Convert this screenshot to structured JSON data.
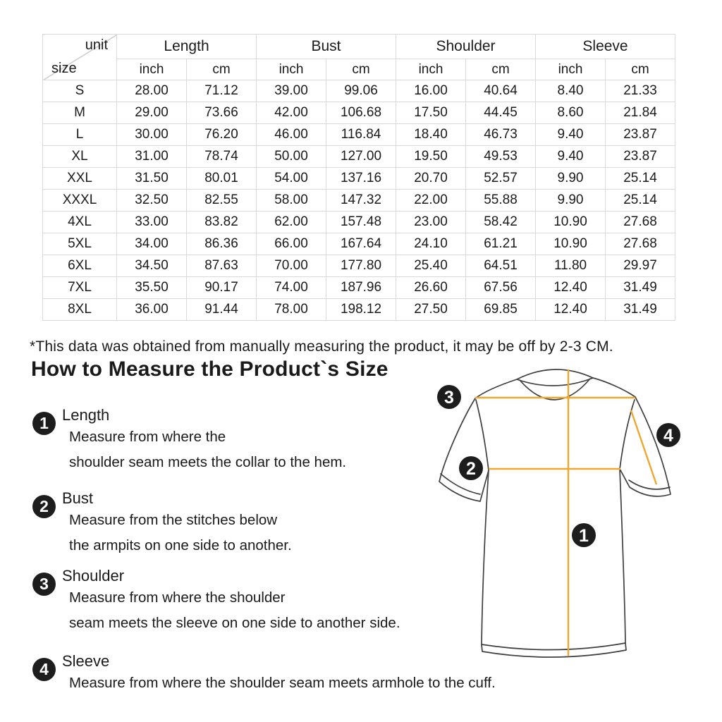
{
  "page": {
    "background": "#ffffff"
  },
  "table": {
    "corner": {
      "unit_label": "unit",
      "size_label": "size"
    },
    "groups": [
      "Length",
      "Bust",
      "Shoulder",
      "Sleeve"
    ],
    "unit_headers": [
      "inch",
      "cm",
      "inch",
      "cm",
      "inch",
      "cm",
      "inch",
      "cm"
    ],
    "rows": [
      {
        "size": "S",
        "values": [
          "28.00",
          "71.12",
          "39.00",
          "99.06",
          "16.00",
          "40.64",
          "8.40",
          "21.33"
        ]
      },
      {
        "size": "M",
        "values": [
          "29.00",
          "73.66",
          "42.00",
          "106.68",
          "17.50",
          "44.45",
          "8.60",
          "21.84"
        ]
      },
      {
        "size": "L",
        "values": [
          "30.00",
          "76.20",
          "46.00",
          "116.84",
          "18.40",
          "46.73",
          "9.40",
          "23.87"
        ]
      },
      {
        "size": "XL",
        "values": [
          "31.00",
          "78.74",
          "50.00",
          "127.00",
          "19.50",
          "49.53",
          "9.40",
          "23.87"
        ]
      },
      {
        "size": "XXL",
        "values": [
          "31.50",
          "80.01",
          "54.00",
          "137.16",
          "20.70",
          "52.57",
          "9.90",
          "25.14"
        ]
      },
      {
        "size": "XXXL",
        "values": [
          "32.50",
          "82.55",
          "58.00",
          "147.32",
          "22.00",
          "55.88",
          "9.90",
          "25.14"
        ]
      },
      {
        "size": "4XL",
        "values": [
          "33.00",
          "83.82",
          "62.00",
          "157.48",
          "23.00",
          "58.42",
          "10.90",
          "27.68"
        ]
      },
      {
        "size": "5XL",
        "values": [
          "34.00",
          "86.36",
          "66.00",
          "167.64",
          "24.10",
          "61.21",
          "10.90",
          "27.68"
        ]
      },
      {
        "size": "6XL",
        "values": [
          "34.50",
          "87.63",
          "70.00",
          "177.80",
          "25.40",
          "64.51",
          "11.80",
          "29.97"
        ]
      },
      {
        "size": "7XL",
        "values": [
          "35.50",
          "90.17",
          "74.00",
          "187.96",
          "26.60",
          "67.56",
          "12.40",
          "31.49"
        ]
      },
      {
        "size": "8XL",
        "values": [
          "36.00",
          "91.44",
          "78.00",
          "198.12",
          "27.50",
          "69.85",
          "12.40",
          "31.49"
        ]
      }
    ]
  },
  "note": "*This data was obtained from manually measuring the product, it may be off by 2-3 CM.",
  "section_title": "How to Measure the Product`s Size",
  "instructions": [
    {
      "num": "1",
      "title": "Length",
      "lines": [
        "Measure from where the",
        "shoulder seam meets the collar to the hem."
      ]
    },
    {
      "num": "2",
      "title": "Bust",
      "lines": [
        "Measure from the stitches below",
        "the armpits on one side to another."
      ]
    },
    {
      "num": "3",
      "title": "Shoulder",
      "lines": [
        "Measure from where the shoulder",
        "seam meets the sleeve on one side to another side."
      ]
    },
    {
      "num": "4",
      "title": "Sleeve",
      "lines": [
        "Measure from where the shoulder seam meets armhole to the cuff."
      ]
    }
  ],
  "diagram": {
    "badges": [
      {
        "label": "1"
      },
      {
        "label": "2"
      },
      {
        "label": "3"
      },
      {
        "label": "4"
      }
    ],
    "colors": {
      "measure_line": "#F0A730",
      "outline": "#3f3f3f",
      "badge_bg": "#1d1d1d",
      "badge_text": "#ffffff",
      "table_border": "#d9d9d9"
    }
  }
}
